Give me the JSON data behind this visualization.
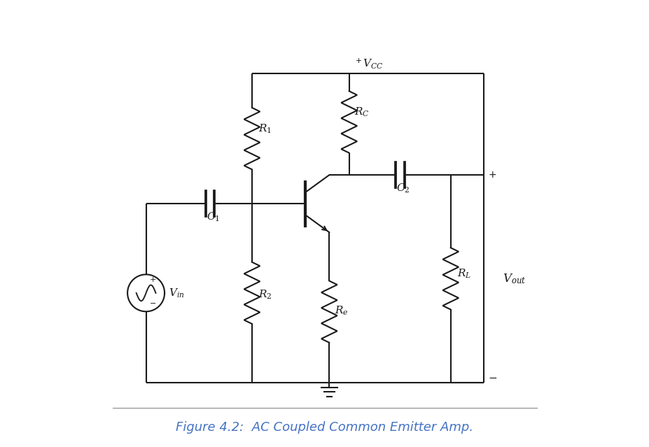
{
  "title": "Figure 4.2:  AC Coupled Common Emitter Amp.",
  "title_color": "#4472c4",
  "title_fontsize": 13,
  "bg_color": "#ffffff",
  "line_color": "#1a1a1a",
  "label_color": "#1a1a1a",
  "line_width": 1.5,
  "figsize": [
    9.28,
    6.39
  ],
  "dpi": 100,
  "xlim": [
    0,
    10
  ],
  "ylim": [
    0,
    10
  ]
}
